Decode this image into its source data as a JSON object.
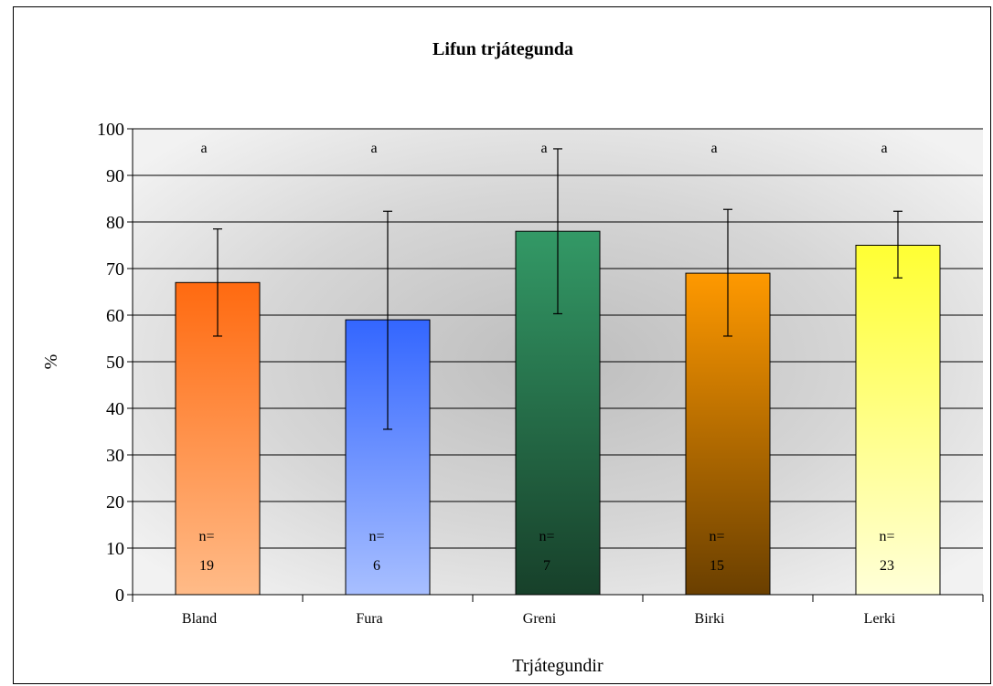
{
  "chart_data": {
    "type": "bar",
    "title": "Lifun trjátegunda",
    "xlabel": "Trjátegundir",
    "ylabel": "%",
    "ylim": [
      0,
      100
    ],
    "yticks": [
      0,
      10,
      20,
      30,
      40,
      50,
      60,
      70,
      80,
      90,
      100
    ],
    "grid": true,
    "categories": [
      "Bland",
      "Fura",
      "Greni",
      "Birki",
      "Lerki"
    ],
    "values": [
      67,
      59,
      78,
      69,
      75
    ],
    "error_low": [
      55.5,
      35.5,
      60.3,
      55.5,
      68
    ],
    "error_high": [
      78.5,
      82.3,
      95.7,
      82.7,
      82.3
    ],
    "significance_letters": [
      "a",
      "a",
      "a",
      "a",
      "a"
    ],
    "n_label": "n=",
    "n_values": [
      "19",
      "6",
      "7",
      "15",
      "23"
    ],
    "bar_colors": [
      {
        "top": "#ff6a10",
        "bottom": "#ffbb88"
      },
      {
        "top": "#3366ff",
        "bottom": "#a8bfff"
      },
      {
        "top": "#339966",
        "bottom": "#17402a"
      },
      {
        "top": "#ff9900",
        "bottom": "#6a3f00"
      },
      {
        "top": "#ffff33",
        "bottom": "#ffffd8"
      }
    ]
  }
}
